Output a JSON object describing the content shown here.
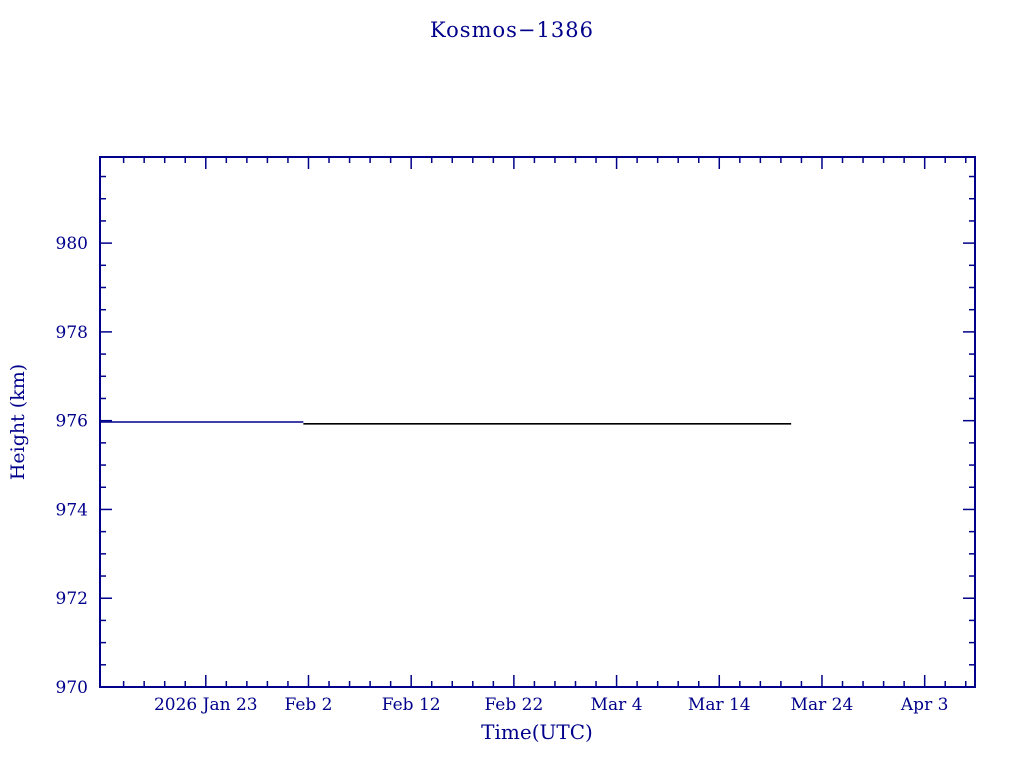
{
  "chart_data": {
    "type": "line",
    "title": "Kosmos−1386",
    "xlabel": "Time(UTC)",
    "ylabel": "Height (km)",
    "axis_color": "#00008b",
    "background": "#ffffff",
    "x_domain_days": [
      12.7,
      97.9
    ],
    "ylim": [
      970,
      981.94
    ],
    "x_ticks": [
      {
        "day": 23,
        "label": "2026 Jan 23"
      },
      {
        "day": 33,
        "label": "Feb 2"
      },
      {
        "day": 43,
        "label": "Feb 12"
      },
      {
        "day": 53,
        "label": "Feb 22"
      },
      {
        "day": 63,
        "label": "Mar 4"
      },
      {
        "day": 73,
        "label": "Mar 14"
      },
      {
        "day": 83,
        "label": "Mar 24"
      },
      {
        "day": 93,
        "label": "Apr 3"
      }
    ],
    "y_ticks": [
      970,
      972,
      974,
      976,
      978,
      980
    ],
    "x_minor_step_days": 2,
    "y_minor_step_km": 0.5,
    "series": [
      {
        "name": "height-segment-blue",
        "color": "#00008b",
        "points": [
          [
            12.7,
            975.97
          ],
          [
            32.5,
            975.97
          ]
        ]
      },
      {
        "name": "height-segment-black",
        "color": "#000000",
        "points": [
          [
            32.5,
            975.93
          ],
          [
            80.0,
            975.93
          ]
        ]
      }
    ]
  }
}
